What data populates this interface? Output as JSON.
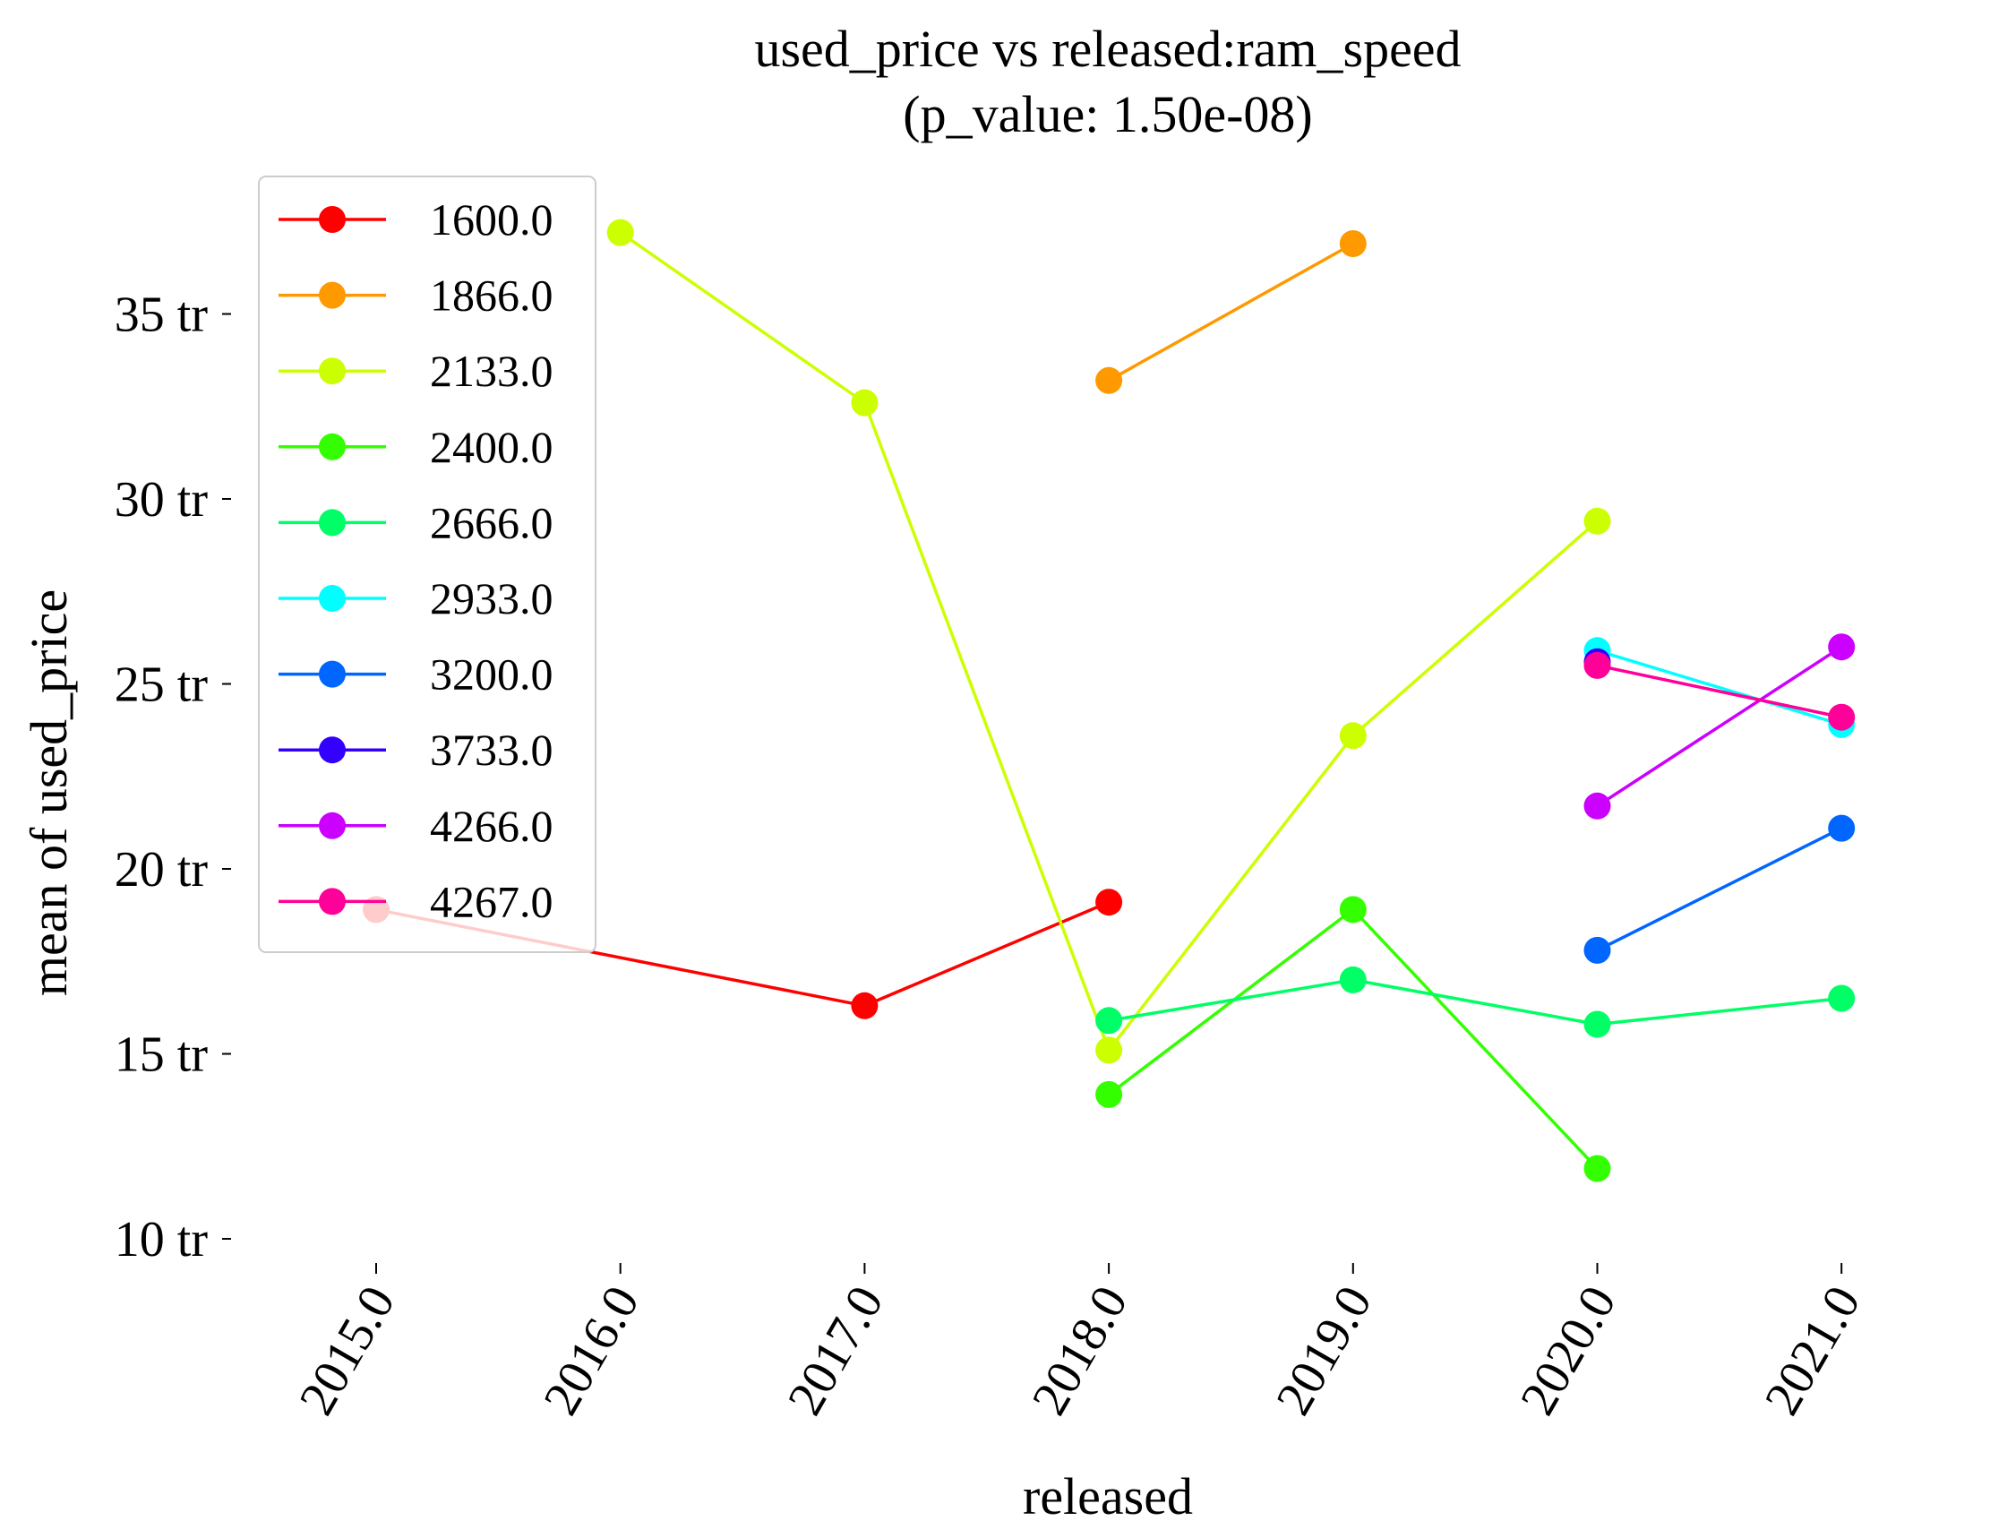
{
  "chart_data": {
    "type": "line",
    "title": "used_price vs released:ram_speed",
    "subtitle": "(p_value: 1.50e-08)",
    "xlabel": "released",
    "ylabel": "mean of used_price",
    "x": [
      2015,
      2016,
      2017,
      2018,
      2019,
      2020,
      2021
    ],
    "x_tick_labels": [
      "2015.0",
      "2016.0",
      "2017.0",
      "2018.0",
      "2019.0",
      "2020.0",
      "2021.0"
    ],
    "ylim": [
      10,
      37.5
    ],
    "y_ticks": [
      10,
      15,
      20,
      25,
      30,
      35
    ],
    "y_tick_labels": [
      "10 tr",
      "15 tr",
      "20 tr",
      "25 tr",
      "30 tr",
      "35 tr"
    ],
    "grid": false,
    "legend_position": "upper-left",
    "series": [
      {
        "name": "1600.0",
        "color": "#ff0000",
        "values": [
          18.9,
          null,
          16.3,
          19.1,
          null,
          null,
          null
        ]
      },
      {
        "name": "1866.0",
        "color": "#ff9900",
        "values": [
          null,
          null,
          null,
          33.2,
          36.9,
          null,
          null
        ]
      },
      {
        "name": "2133.0",
        "color": "#ccff00",
        "values": [
          null,
          37.2,
          32.6,
          15.1,
          23.6,
          29.4,
          null
        ]
      },
      {
        "name": "2400.0",
        "color": "#33ff00",
        "values": [
          null,
          null,
          null,
          13.9,
          18.9,
          11.9,
          null
        ]
      },
      {
        "name": "2666.0",
        "color": "#00ff66",
        "values": [
          null,
          null,
          null,
          15.9,
          17.0,
          15.8,
          16.5
        ]
      },
      {
        "name": "2933.0",
        "color": "#00ffff",
        "values": [
          null,
          null,
          null,
          null,
          null,
          25.9,
          23.9
        ]
      },
      {
        "name": "3200.0",
        "color": "#0066ff",
        "values": [
          null,
          null,
          null,
          null,
          null,
          17.8,
          21.1
        ]
      },
      {
        "name": "3733.0",
        "color": "#3300ff",
        "values": [
          null,
          null,
          null,
          null,
          null,
          25.6,
          null
        ]
      },
      {
        "name": "4266.0",
        "color": "#cc00ff",
        "values": [
          null,
          null,
          null,
          null,
          null,
          21.7,
          26.0
        ]
      },
      {
        "name": "4267.0",
        "color": "#ff0099",
        "values": [
          null,
          null,
          null,
          null,
          null,
          25.5,
          24.1
        ]
      }
    ]
  }
}
